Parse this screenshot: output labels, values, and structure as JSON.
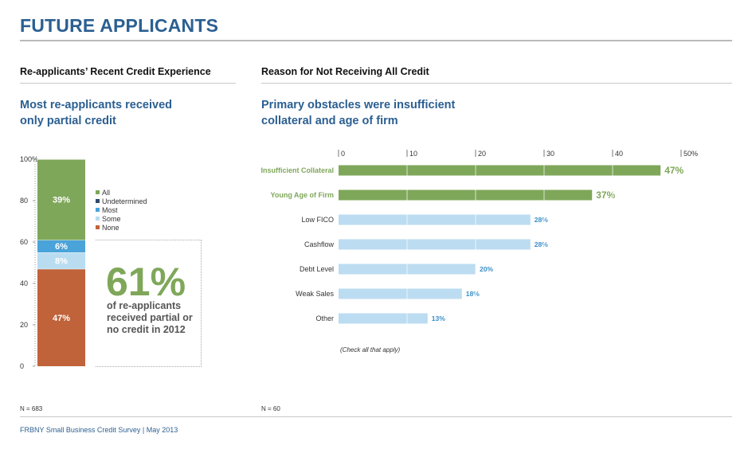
{
  "page": {
    "title": "FUTURE APPLICANTS",
    "footer": "FRBNY Small Business Credit Survey  |  May 2013"
  },
  "left_panel": {
    "section_title": "Re-applicants’ Recent Credit Experience",
    "headline_line1": "Most re-applicants received",
    "headline_line2": "only partial credit",
    "callout_value": "61%",
    "callout_line1": "of re-applicants",
    "callout_line2": "received partial or",
    "callout_line3": "no credit in 2012",
    "n_note": "N = 683"
  },
  "right_panel": {
    "section_title": "Reason for Not Receiving All Credit",
    "headline_line1": "Primary obstacles were insufficient",
    "headline_line2": "collateral and age of firm",
    "check_note": "(Check all that apply)",
    "n_note": "N = 60"
  },
  "colors": {
    "all": "#7fa75a",
    "undetermined": "#2e4a6b",
    "most": "#4aa3d9",
    "some": "#b9dcf0",
    "none": "#c0623a",
    "highlight_bar": "#7fa75a",
    "other_bar": "#bcdcf1",
    "highlight_label": "#7fa75a",
    "other_label": "#3a8fc9"
  },
  "chart_data": [
    {
      "type": "bar",
      "stacked": true,
      "orientation": "vertical",
      "ylim": [
        0,
        100
      ],
      "y_ticks": [
        "0",
        "20",
        "40",
        "60",
        "80",
        "100%"
      ],
      "y_tick_values": [
        0,
        20,
        40,
        60,
        80,
        100
      ],
      "legend": [
        "All",
        "Undetermined",
        "Most",
        "Some",
        "None"
      ],
      "legend_placement": "right",
      "segments": [
        {
          "name": "None",
          "value": 47,
          "label": "47%"
        },
        {
          "name": "Some",
          "value": 8,
          "label": "8%"
        },
        {
          "name": "Most",
          "value": 6,
          "label": "6%"
        },
        {
          "name": "Undetermined",
          "value": 0,
          "label": ""
        },
        {
          "name": "All",
          "value": 39,
          "label": "39%"
        }
      ]
    },
    {
      "type": "bar",
      "orientation": "horizontal",
      "xlim": [
        0,
        50
      ],
      "x_ticks": [
        "0",
        "10",
        "20",
        "30",
        "40",
        "50%"
      ],
      "x_tick_values": [
        0,
        10,
        20,
        30,
        40,
        50
      ],
      "categories": [
        "Insufficient Collateral",
        "Young Age of Firm",
        "Low FICO",
        "Cashflow",
        "Debt Level",
        "Weak Sales",
        "Other"
      ],
      "values": [
        47,
        37,
        28,
        28,
        20,
        18,
        13
      ],
      "labels": [
        "47%",
        "37%",
        "28%",
        "28%",
        "20%",
        "18%",
        "13%"
      ],
      "highlighted": [
        true,
        true,
        false,
        false,
        false,
        false,
        false
      ]
    }
  ]
}
